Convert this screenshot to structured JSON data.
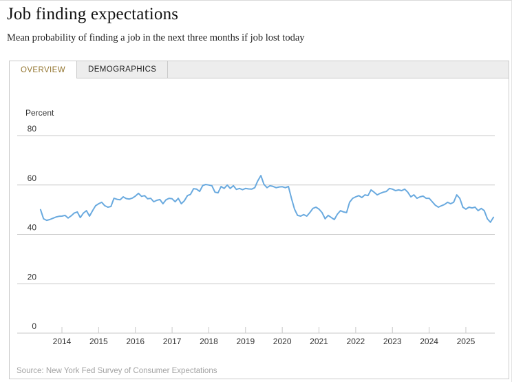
{
  "header": {
    "title": "Job finding expectations",
    "subtitle": "Mean probability of finding a job in the next three months if job lost today"
  },
  "tabs": [
    {
      "label": "OVERVIEW",
      "active": true
    },
    {
      "label": "DEMOGRAPHICS",
      "active": false
    }
  ],
  "source": "Source: New York Fed Survey of Consumer Expectations",
  "colors": {
    "line": "#6aaadf",
    "grid": "#c8c8c8",
    "axis_text": "#333333",
    "active_tab_text": "#93752f",
    "tabstrip_bg": "#ededed",
    "source_text": "#a3a3a3"
  },
  "chart_data": {
    "type": "line",
    "title": "Job finding expectations",
    "xlabel": "",
    "ylabel": "Percent",
    "ylim": [
      0,
      80
    ],
    "y_ticks": [
      0,
      20,
      40,
      60,
      80
    ],
    "x_year_ticks": [
      2014,
      2015,
      2016,
      2017,
      2018,
      2019,
      2020,
      2021,
      2022,
      2023,
      2024,
      2025
    ],
    "frequency": "monthly",
    "start": "2013-06",
    "end": "2025-10",
    "grid": "horizontal-only",
    "legend": "none",
    "series": [
      {
        "name": "Mean probability of finding a job in the next three months if job lost today",
        "values": [
          50.0,
          46.3,
          45.7,
          46.0,
          46.5,
          47.0,
          47.3,
          47.4,
          47.7,
          46.6,
          47.5,
          48.6,
          49.1,
          46.8,
          48.6,
          49.6,
          47.4,
          49.6,
          51.6,
          52.4,
          53.0,
          51.6,
          51.0,
          51.3,
          54.6,
          54.2,
          54.0,
          55.2,
          54.5,
          54.3,
          54.7,
          55.5,
          56.6,
          55.4,
          55.7,
          54.4,
          54.6,
          53.2,
          53.8,
          54.1,
          52.4,
          54.0,
          54.6,
          54.4,
          53.2,
          54.6,
          52.4,
          53.6,
          55.7,
          56.2,
          58.5,
          58.3,
          57.4,
          59.8,
          60.2,
          60.0,
          59.7,
          57.1,
          56.8,
          59.4,
          58.6,
          60.0,
          58.6,
          59.7,
          58.2,
          58.6,
          58.1,
          58.6,
          58.4,
          58.3,
          58.9,
          61.7,
          63.8,
          60.3,
          58.9,
          59.7,
          59.4,
          58.9,
          59.2,
          59.3,
          58.9,
          59.4,
          54.5,
          50.2,
          47.7,
          47.4,
          48.0,
          47.4,
          48.8,
          50.5,
          51.0,
          50.2,
          48.8,
          46.3,
          47.7,
          46.8,
          46.0,
          48.2,
          49.6,
          49.1,
          48.8,
          53.0,
          54.6,
          55.2,
          55.7,
          54.9,
          56.0,
          55.7,
          58.0,
          57.1,
          56.0,
          56.6,
          57.1,
          57.4,
          58.6,
          58.3,
          57.7,
          58.0,
          57.7,
          58.3,
          57.1,
          55.2,
          56.0,
          54.6,
          55.2,
          55.5,
          54.6,
          54.6,
          53.2,
          51.8,
          51.0,
          51.6,
          52.1,
          53.0,
          52.4,
          53.0,
          56.0,
          54.6,
          51.0,
          50.2,
          51.0,
          50.7,
          51.0,
          49.6,
          50.5,
          49.6,
          46.3,
          44.9,
          46.9
        ]
      }
    ]
  }
}
